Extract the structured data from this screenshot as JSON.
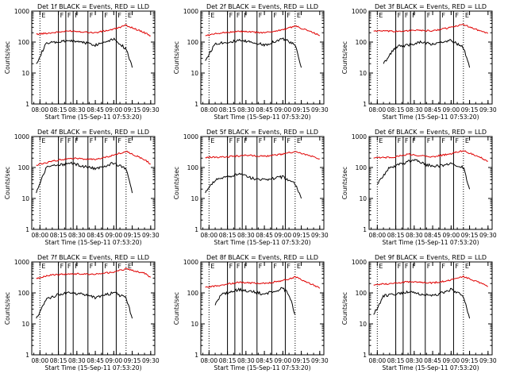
{
  "colors": {
    "events": "#000000",
    "lld": "#e00000",
    "axes": "#000000"
  },
  "chart_data": [
    {
      "type": "line",
      "title": "Det 1f BLACK = Events, RED = LLD",
      "xlabel": "Start Time (15-Sep-11 07:53:20)",
      "ylabel": "Counts/sec",
      "scale": "log",
      "ylim": [
        1,
        1000
      ],
      "xlim": [
        "07:53:20",
        "09:33:20"
      ],
      "xticks": [
        "08:00",
        "08:15",
        "08:30",
        "08:45",
        "09:00",
        "09:15",
        "09:30"
      ],
      "yticks": [
        "1",
        "10",
        "100",
        "1000"
      ],
      "flags": [
        {
          "at": "08:00",
          "text": "E"
        },
        {
          "at": "08:15",
          "text": "F"
        },
        {
          "at": "08:21",
          "text": "F"
        },
        {
          "at": "08:27",
          "text": "F"
        },
        {
          "at": "08:39",
          "text": "F"
        },
        {
          "at": "08:51",
          "text": "F"
        },
        {
          "at": "09:02",
          "text": "F"
        },
        {
          "at": "09:10",
          "text": "E"
        }
      ],
      "series": [
        {
          "name": "BLACK = Events",
          "x": [
            "07:57",
            "08:05",
            "08:15",
            "08:25",
            "08:35",
            "08:45",
            "09:00",
            "09:10",
            "09:15"
          ],
          "values": [
            20,
            90,
            100,
            110,
            100,
            80,
            130,
            60,
            15
          ]
        },
        {
          "name": "RED = LLD",
          "x": [
            "07:57",
            "08:10",
            "08:25",
            "08:45",
            "09:00",
            "09:10",
            "09:25",
            "09:30"
          ],
          "values": [
            180,
            200,
            230,
            200,
            260,
            350,
            200,
            160
          ]
        }
      ]
    },
    {
      "type": "line",
      "title": "Det 2f BLACK = Events, RED = LLD",
      "xlabel": "Start Time (15-Sep-11 07:53:20)",
      "ylabel": "Counts/sec",
      "scale": "log",
      "ylim": [
        1,
        1000
      ],
      "xlim": [
        "07:53:20",
        "09:33:20"
      ],
      "xticks": [
        "08:00",
        "08:15",
        "08:30",
        "08:45",
        "09:00",
        "09:15",
        "09:30"
      ],
      "yticks": [
        "1",
        "10",
        "100",
        "1000"
      ],
      "flags": [
        {
          "at": "08:00",
          "text": "E"
        },
        {
          "at": "08:15",
          "text": "F"
        },
        {
          "at": "08:21",
          "text": "F"
        },
        {
          "at": "08:27",
          "text": "F"
        },
        {
          "at": "08:39",
          "text": "F"
        },
        {
          "at": "08:51",
          "text": "F"
        },
        {
          "at": "09:02",
          "text": "F"
        },
        {
          "at": "09:10",
          "text": "E"
        }
      ],
      "series": [
        {
          "name": "BLACK = Events",
          "x": [
            "07:57",
            "08:05",
            "08:15",
            "08:25",
            "08:35",
            "08:45",
            "09:00",
            "09:10",
            "09:15"
          ],
          "values": [
            25,
            90,
            100,
            110,
            100,
            80,
            130,
            80,
            15
          ]
        },
        {
          "name": "RED = LLD",
          "x": [
            "07:57",
            "08:10",
            "08:25",
            "08:45",
            "09:00",
            "09:10",
            "09:25",
            "09:30"
          ],
          "values": [
            160,
            200,
            220,
            200,
            250,
            330,
            200,
            160
          ]
        }
      ]
    },
    {
      "type": "line",
      "title": "Det 3f BLACK = Events, RED = LLD",
      "xlabel": "Start Time (15-Sep-11 07:53:20)",
      "ylabel": "Counts/sec",
      "scale": "log",
      "ylim": [
        1,
        1000
      ],
      "xlim": [
        "07:53:20",
        "09:33:20"
      ],
      "xticks": [
        "08:00",
        "08:15",
        "08:30",
        "08:45",
        "09:00",
        "09:15",
        "09:30"
      ],
      "yticks": [
        "1",
        "10",
        "100",
        "1000"
      ],
      "flags": [
        {
          "at": "08:00",
          "text": "E"
        },
        {
          "at": "08:15",
          "text": "F"
        },
        {
          "at": "08:21",
          "text": "F"
        },
        {
          "at": "08:27",
          "text": "F"
        },
        {
          "at": "08:39",
          "text": "F"
        },
        {
          "at": "08:51",
          "text": "F"
        },
        {
          "at": "09:02",
          "text": "F"
        },
        {
          "at": "09:10",
          "text": "E"
        }
      ],
      "series": [
        {
          "name": "BLACK = Events",
          "x": [
            "08:05",
            "08:15",
            "08:25",
            "08:35",
            "08:45",
            "09:00",
            "09:10",
            "09:15"
          ],
          "values": [
            20,
            70,
            80,
            100,
            85,
            110,
            70,
            15
          ]
        },
        {
          "name": "RED = LLD",
          "x": [
            "07:57",
            "08:15",
            "08:30",
            "08:45",
            "09:00",
            "09:10",
            "09:25",
            "09:30"
          ],
          "values": [
            230,
            220,
            240,
            230,
            300,
            370,
            220,
            190
          ]
        }
      ]
    },
    {
      "type": "line",
      "title": "Det 4f BLACK = Events, RED = LLD",
      "xlabel": "Start Time (15-Sep-11 07:53:20)",
      "ylabel": "Counts/sec",
      "scale": "log",
      "ylim": [
        1,
        1000
      ],
      "xlim": [
        "07:53:20",
        "09:33:20"
      ],
      "xticks": [
        "08:00",
        "08:15",
        "08:30",
        "08:45",
        "09:00",
        "09:15",
        "09:30"
      ],
      "yticks": [
        "1",
        "10",
        "100",
        "1000"
      ],
      "flags": [
        {
          "at": "08:00",
          "text": "E"
        },
        {
          "at": "08:15",
          "text": "F"
        },
        {
          "at": "08:21",
          "text": "F"
        },
        {
          "at": "08:27",
          "text": "F"
        },
        {
          "at": "08:39",
          "text": "F"
        },
        {
          "at": "08:51",
          "text": "F"
        },
        {
          "at": "09:02",
          "text": "F"
        },
        {
          "at": "09:10",
          "text": "E"
        }
      ],
      "series": [
        {
          "name": "BLACK = Events",
          "x": [
            "07:57",
            "08:05",
            "08:15",
            "08:25",
            "08:35",
            "08:45",
            "09:00",
            "09:10",
            "09:15"
          ],
          "values": [
            15,
            100,
            120,
            140,
            110,
            90,
            140,
            90,
            15
          ]
        },
        {
          "name": "RED = LLD",
          "x": [
            "07:57",
            "08:10",
            "08:25",
            "08:45",
            "09:00",
            "09:10",
            "09:25",
            "09:30"
          ],
          "values": [
            120,
            160,
            200,
            180,
            250,
            330,
            180,
            130
          ]
        }
      ]
    },
    {
      "type": "line",
      "title": "Det 5f BLACK = Events, RED = LLD",
      "xlabel": "Start Time (15-Sep-11 07:53:20)",
      "ylabel": "Counts/sec",
      "scale": "log",
      "ylim": [
        1,
        1000
      ],
      "xlim": [
        "07:53:20",
        "09:33:20"
      ],
      "xticks": [
        "08:00",
        "08:15",
        "08:30",
        "08:45",
        "09:00",
        "09:15",
        "09:30"
      ],
      "yticks": [
        "1",
        "10",
        "100",
        "1000"
      ],
      "flags": [
        {
          "at": "08:00",
          "text": "E"
        },
        {
          "at": "08:15",
          "text": "F"
        },
        {
          "at": "08:21",
          "text": "F"
        },
        {
          "at": "08:27",
          "text": "F"
        },
        {
          "at": "08:39",
          "text": "F"
        },
        {
          "at": "08:51",
          "text": "F"
        },
        {
          "at": "09:02",
          "text": "F"
        },
        {
          "at": "09:10",
          "text": "E"
        }
      ],
      "series": [
        {
          "name": "BLACK = Events",
          "x": [
            "07:57",
            "08:05",
            "08:15",
            "08:25",
            "08:35",
            "08:45",
            "09:00",
            "09:10",
            "09:15"
          ],
          "values": [
            15,
            40,
            50,
            60,
            45,
            40,
            50,
            30,
            10
          ]
        },
        {
          "name": "RED = LLD",
          "x": [
            "07:57",
            "08:15",
            "08:30",
            "08:45",
            "09:00",
            "09:10",
            "09:25",
            "09:30"
          ],
          "values": [
            210,
            220,
            250,
            230,
            270,
            320,
            220,
            190
          ]
        }
      ]
    },
    {
      "type": "line",
      "title": "Det 6f BLACK = Events, RED = LLD",
      "xlabel": "Start Time (15-Sep-11 07:53:20)",
      "ylabel": "Counts/sec",
      "scale": "log",
      "ylim": [
        1,
        1000
      ],
      "xlim": [
        "07:53:20",
        "09:33:20"
      ],
      "xticks": [
        "08:00",
        "08:15",
        "08:30",
        "08:45",
        "09:00",
        "09:15",
        "09:30"
      ],
      "yticks": [
        "1",
        "10",
        "100",
        "1000"
      ],
      "flags": [
        {
          "at": "08:00",
          "text": "E"
        },
        {
          "at": "08:15",
          "text": "F"
        },
        {
          "at": "08:21",
          "text": "F"
        },
        {
          "at": "08:27",
          "text": "F"
        },
        {
          "at": "08:39",
          "text": "F"
        },
        {
          "at": "08:51",
          "text": "F"
        },
        {
          "at": "09:02",
          "text": "F"
        },
        {
          "at": "09:10",
          "text": "E"
        }
      ],
      "series": [
        {
          "name": "BLACK = Events",
          "x": [
            "08:00",
            "08:10",
            "08:20",
            "08:30",
            "08:40",
            "08:50",
            "09:00",
            "09:10",
            "09:15"
          ],
          "values": [
            30,
            100,
            130,
            180,
            120,
            110,
            140,
            100,
            20
          ]
        },
        {
          "name": "RED = LLD",
          "x": [
            "07:57",
            "08:15",
            "08:25",
            "08:45",
            "09:00",
            "09:10",
            "09:25",
            "09:30"
          ],
          "values": [
            200,
            220,
            270,
            220,
            280,
            350,
            200,
            160
          ]
        }
      ]
    },
    {
      "type": "line",
      "title": "Det 7f BLACK = Events, RED = LLD",
      "xlabel": "Start Time (15-Sep-11 07:53:20)",
      "ylabel": "Counts/sec",
      "scale": "log",
      "ylim": [
        1,
        1000
      ],
      "xlim": [
        "07:53:20",
        "09:33:20"
      ],
      "xticks": [
        "08:00",
        "08:15",
        "08:30",
        "08:45",
        "09:00",
        "09:15",
        "09:30"
      ],
      "yticks": [
        "1",
        "10",
        "100",
        "1000"
      ],
      "flags": [
        {
          "at": "08:00",
          "text": "E"
        },
        {
          "at": "08:15",
          "text": "F"
        },
        {
          "at": "08:21",
          "text": "F"
        },
        {
          "at": "08:27",
          "text": "F"
        },
        {
          "at": "08:39",
          "text": "F"
        },
        {
          "at": "08:51",
          "text": "F"
        },
        {
          "at": "09:02",
          "text": "F"
        },
        {
          "at": "09:10",
          "text": "E"
        }
      ],
      "series": [
        {
          "name": "BLACK = Events",
          "x": [
            "07:57",
            "08:05",
            "08:15",
            "08:25",
            "08:35",
            "08:45",
            "09:00",
            "09:10",
            "09:15"
          ],
          "values": [
            15,
            60,
            90,
            100,
            90,
            70,
            100,
            70,
            15
          ]
        },
        {
          "name": "RED = LLD",
          "x": [
            "07:57",
            "08:10",
            "08:25",
            "08:45",
            "09:00",
            "09:10",
            "09:25",
            "09:30"
          ],
          "values": [
            300,
            380,
            420,
            400,
            470,
            600,
            430,
            320
          ]
        }
      ]
    },
    {
      "type": "line",
      "title": "Det 8f BLACK = Events, RED = LLD",
      "xlabel": "Start Time (15-Sep-11 07:53:20)",
      "ylabel": "Counts/sec",
      "scale": "log",
      "ylim": [
        1,
        1000
      ],
      "xlim": [
        "07:53:20",
        "09:33:20"
      ],
      "xticks": [
        "08:00",
        "08:15",
        "08:30",
        "08:45",
        "09:00",
        "09:15",
        "09:30"
      ],
      "yticks": [
        "1",
        "10",
        "100",
        "1000"
      ],
      "flags": [
        {
          "at": "08:00",
          "text": "E"
        },
        {
          "at": "08:15",
          "text": "F"
        },
        {
          "at": "08:21",
          "text": "F"
        },
        {
          "at": "08:27",
          "text": "F"
        },
        {
          "at": "08:39",
          "text": "F"
        },
        {
          "at": "08:51",
          "text": "F"
        },
        {
          "at": "09:02",
          "text": "F"
        },
        {
          "at": "09:10",
          "text": "E"
        }
      ],
      "series": [
        {
          "name": "BLACK = Events",
          "x": [
            "08:05",
            "08:10",
            "08:15",
            "08:25",
            "08:35",
            "08:45",
            "09:00",
            "09:05",
            "09:10"
          ],
          "values": [
            40,
            90,
            100,
            130,
            110,
            90,
            140,
            90,
            20
          ]
        },
        {
          "name": "RED = LLD",
          "x": [
            "07:57",
            "08:10",
            "08:25",
            "08:45",
            "09:00",
            "09:10",
            "09:25",
            "09:30"
          ],
          "values": [
            150,
            180,
            220,
            200,
            250,
            330,
            180,
            140
          ]
        }
      ]
    },
    {
      "type": "line",
      "title": "Det 9f BLACK = Events, RED = LLD",
      "xlabel": "Start Time (15-Sep-11 07:53:20)",
      "ylabel": "Counts/sec",
      "scale": "log",
      "ylim": [
        1,
        1000
      ],
      "xlim": [
        "07:53:20",
        "09:33:20"
      ],
      "xticks": [
        "08:00",
        "08:15",
        "08:30",
        "08:45",
        "09:00",
        "09:15",
        "09:30"
      ],
      "yticks": [
        "1",
        "10",
        "100",
        "1000"
      ],
      "flags": [
        {
          "at": "08:00",
          "text": "E"
        },
        {
          "at": "08:15",
          "text": "F"
        },
        {
          "at": "08:21",
          "text": "F"
        },
        {
          "at": "08:27",
          "text": "F"
        },
        {
          "at": "08:39",
          "text": "F"
        },
        {
          "at": "08:51",
          "text": "F"
        },
        {
          "at": "09:02",
          "text": "F"
        },
        {
          "at": "09:10",
          "text": "E"
        }
      ],
      "series": [
        {
          "name": "BLACK = Events",
          "x": [
            "07:57",
            "08:05",
            "08:15",
            "08:25",
            "08:35",
            "08:45",
            "09:00",
            "09:10",
            "09:15"
          ],
          "values": [
            20,
            80,
            90,
            110,
            90,
            80,
            130,
            80,
            15
          ]
        },
        {
          "name": "RED = LLD",
          "x": [
            "07:57",
            "08:10",
            "08:25",
            "08:45",
            "09:00",
            "09:10",
            "09:25",
            "09:30"
          ],
          "values": [
            180,
            200,
            230,
            210,
            260,
            340,
            200,
            160
          ]
        }
      ]
    }
  ]
}
